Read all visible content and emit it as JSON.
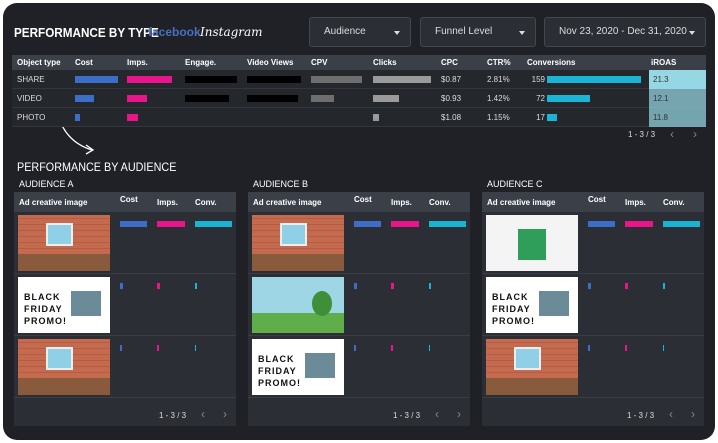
{
  "header": {
    "title": "PERFORMANCE BY TYPE",
    "brands": [
      "facebook",
      "Instagram"
    ]
  },
  "filters": [
    "Audience",
    "Funnel Level",
    "Nov 23, 2020 - Dec 31, 2020"
  ],
  "type_table": {
    "columns": [
      "Object type",
      "Cost",
      "Imps.",
      "Engage.",
      "Video Views",
      "CPV",
      "Clicks",
      "CPC",
      "CTR%",
      "Conversions",
      "iROAS"
    ],
    "rows": [
      {
        "type": "SHARE",
        "cost": 100,
        "imps": 100,
        "engage": 100,
        "video_views": 100,
        "cpv": 100,
        "clicks": 100,
        "cpc": "$0.87",
        "ctr": "2.81%",
        "conversions": 159,
        "iroas": 21.3
      },
      {
        "type": "VIDEO",
        "cost": 45,
        "imps": 45,
        "engage": 85,
        "video_views": 95,
        "cpv": 45,
        "clicks": 45,
        "cpc": "$0.93",
        "ctr": "1.42%",
        "conversions": 72,
        "iroas": 12.1
      },
      {
        "type": "PHOTO",
        "cost": 12,
        "imps": 25,
        "engage": 0,
        "video_views": 0,
        "cpv": 0,
        "clicks": 10,
        "cpc": "$1.08",
        "ctr": "1.15%",
        "conversions": 17,
        "iroas": 11.8
      }
    ],
    "pagination": "1 - 3 / 3"
  },
  "audience_section": {
    "title": "PERFORMANCE BY AUDIENCE",
    "panels": [
      {
        "title": "AUDIENCE A",
        "columns": [
          "Ad creative image",
          "Cost",
          "Imps.",
          "Conv."
        ],
        "rows": [
          {
            "cost": 100,
            "imps": 100,
            "conv": 100
          },
          {
            "image_text": "BLACK FRIDAY PROMO!",
            "cost": 12,
            "imps": 12,
            "conv": 6
          },
          {
            "cost": 8,
            "imps": 8,
            "conv": 4
          }
        ],
        "pagination": "1 - 3 / 3"
      },
      {
        "title": "AUDIENCE B",
        "columns": [
          "Ad creative image",
          "Cost",
          "Imps.",
          "Conv."
        ],
        "rows": [
          {
            "cost": 100,
            "imps": 100,
            "conv": 100
          },
          {
            "cost": 10,
            "imps": 10,
            "conv": 6
          },
          {
            "image_text": "BLACK FRIDAY PROMO!",
            "cost": 8,
            "imps": 8,
            "conv": 4
          }
        ],
        "pagination": "1 - 3 / 3"
      },
      {
        "title": "AUDIENCE C",
        "columns": [
          "Ad creative image",
          "Cost",
          "Imps.",
          "Conv."
        ],
        "rows": [
          {
            "cost": 100,
            "imps": 100,
            "conv": 100
          },
          {
            "image_text": "BLACK FRIDAY PROMO!",
            "cost": 10,
            "imps": 10,
            "conv": 6
          },
          {
            "cost": 8,
            "imps": 8,
            "conv": 4
          }
        ],
        "pagination": "1 - 3 / 3"
      }
    ]
  }
}
